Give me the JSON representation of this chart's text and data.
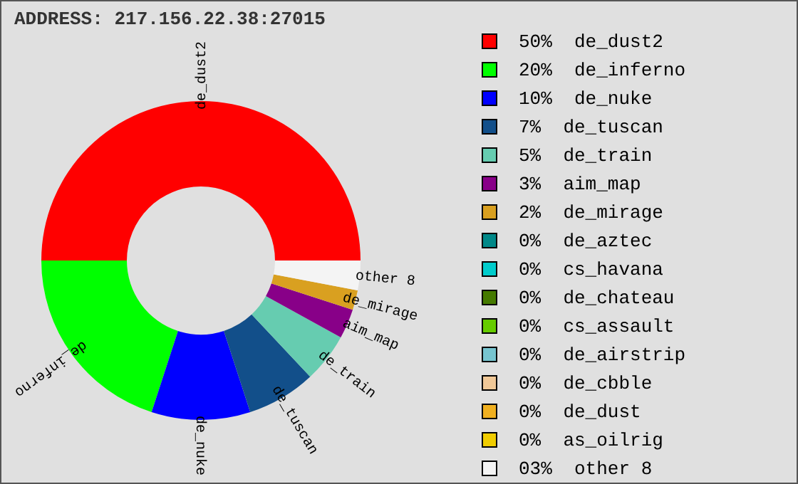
{
  "chart_data": {
    "type": "donut",
    "annotations": [
      "ADDRESS: 217.156.22.38:27015"
    ],
    "categories": [
      "de_dust2",
      "de_inferno",
      "de_nuke",
      "de_tuscan",
      "de_train",
      "aim_map",
      "de_mirage",
      "de_aztec",
      "cs_havana",
      "de_chateau",
      "cs_assault",
      "de_airstrip",
      "de_cbble",
      "de_dust",
      "as_oilrig",
      "other 8"
    ],
    "values": [
      50,
      20,
      10,
      7,
      5,
      3,
      2,
      0,
      0,
      0,
      0,
      0,
      0,
      0,
      0,
      3
    ],
    "value_labels": [
      "50%",
      "20%",
      "10%",
      "7%",
      "5%",
      "3%",
      "2%",
      "0%",
      "0%",
      "0%",
      "0%",
      "0%",
      "0%",
      "0%",
      "0%",
      "03%"
    ],
    "colors": [
      "#ff0000",
      "#00ff00",
      "#0000ff",
      "#124f8a",
      "#66ccb0",
      "#880088",
      "#d9a020",
      "#008888",
      "#00cccc",
      "#457a00",
      "#66cc00",
      "#77c5d0",
      "#f0c898",
      "#f0b020",
      "#f0cc00",
      "#f4f4f4"
    ],
    "legend": "right"
  }
}
